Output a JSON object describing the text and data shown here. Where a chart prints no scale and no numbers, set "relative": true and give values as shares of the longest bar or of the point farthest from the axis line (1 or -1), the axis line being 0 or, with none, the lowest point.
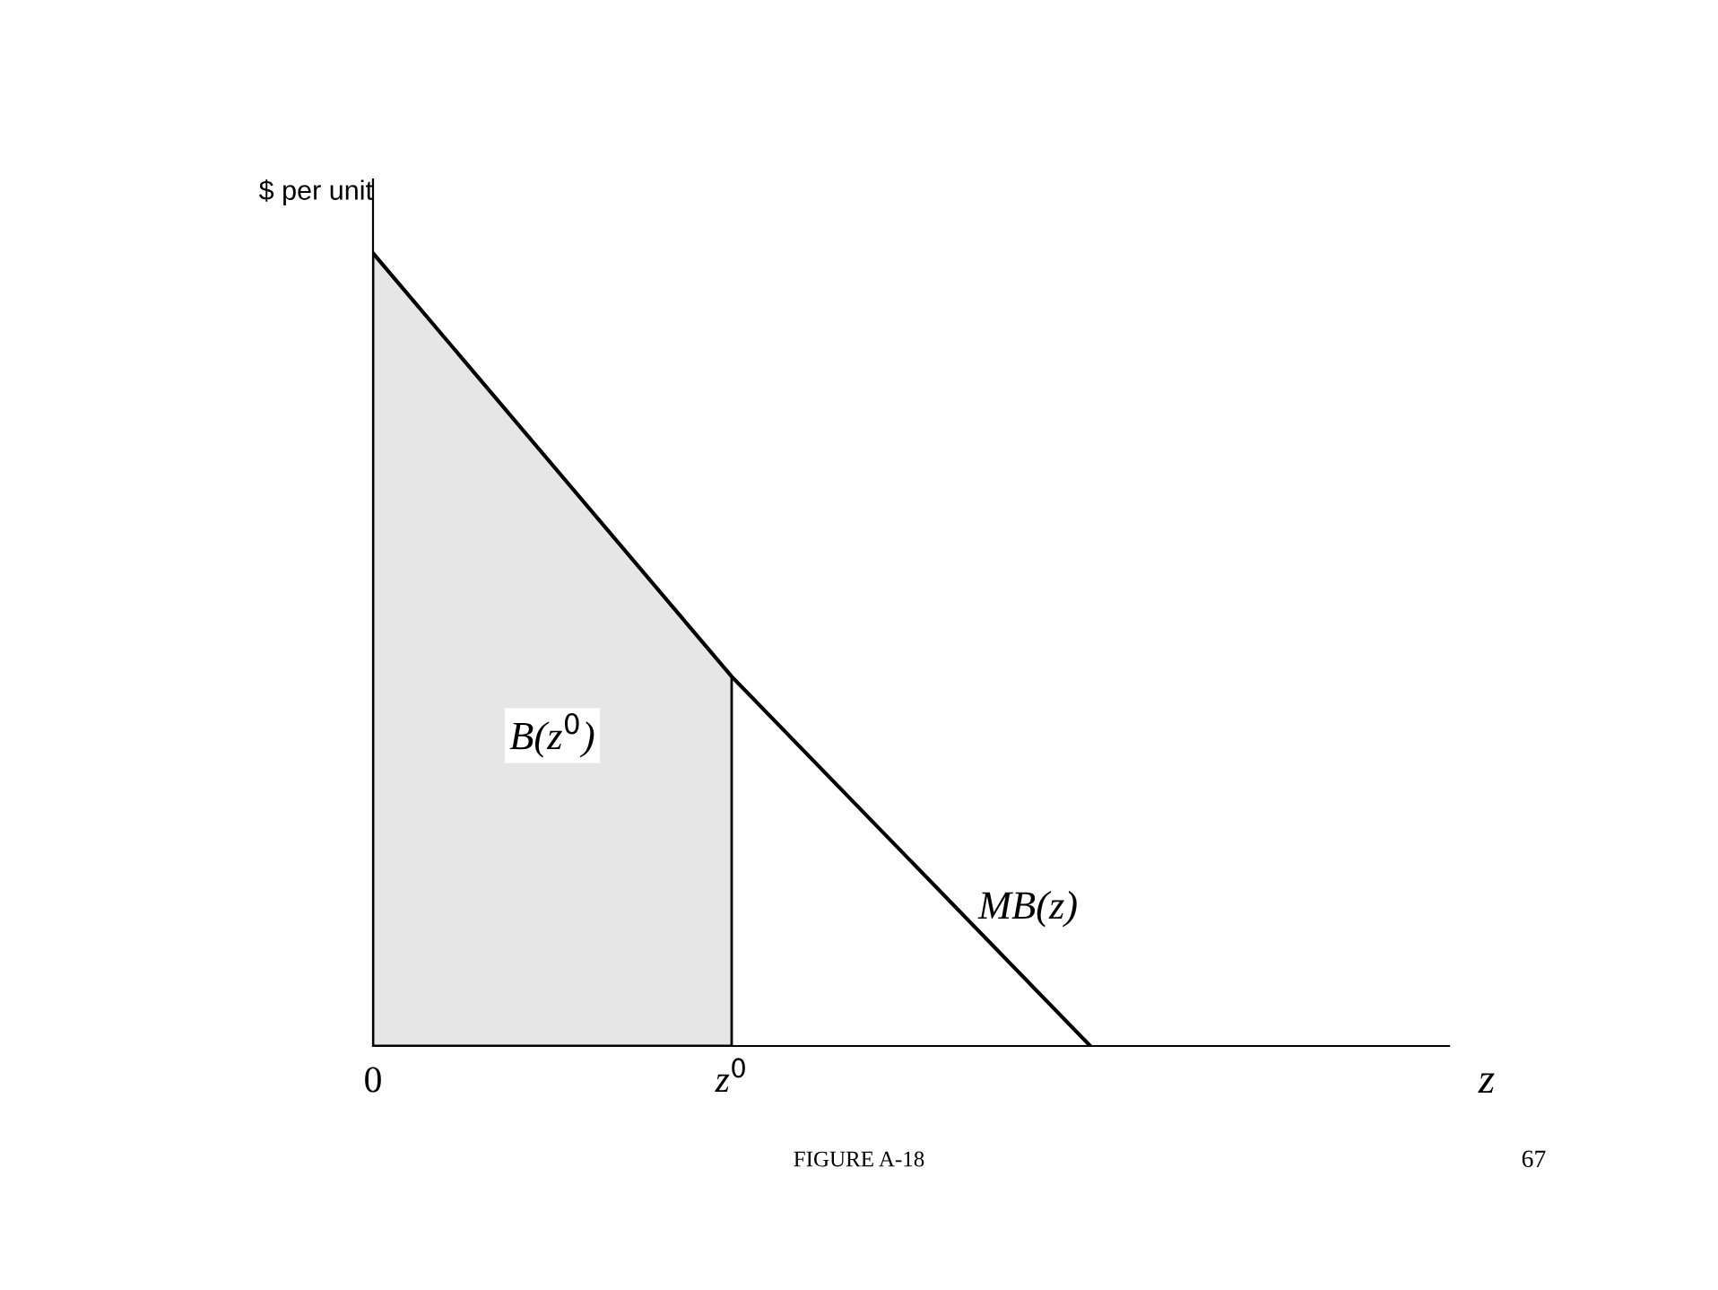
{
  "chart_data": {
    "type": "line",
    "relative": true,
    "ylabel": "$ per unit",
    "xlabel": "z",
    "categories": [
      "0",
      "z$^{0}$",
      null,
      null
    ],
    "series": [
      {
        "type": "area",
        "name": "B(z$^{0}$)",
        "color": "#e6e6e6",
        "values": [
          1,
          0.466,
          null,
          null
        ]
      },
      {
        "name": "MB(z)",
        "color": "#000000",
        "values": [
          1,
          0.466,
          0,
          null
        ]
      }
    ],
    "annotations": [
      "FIGURE A-18",
      "67"
    ]
  }
}
